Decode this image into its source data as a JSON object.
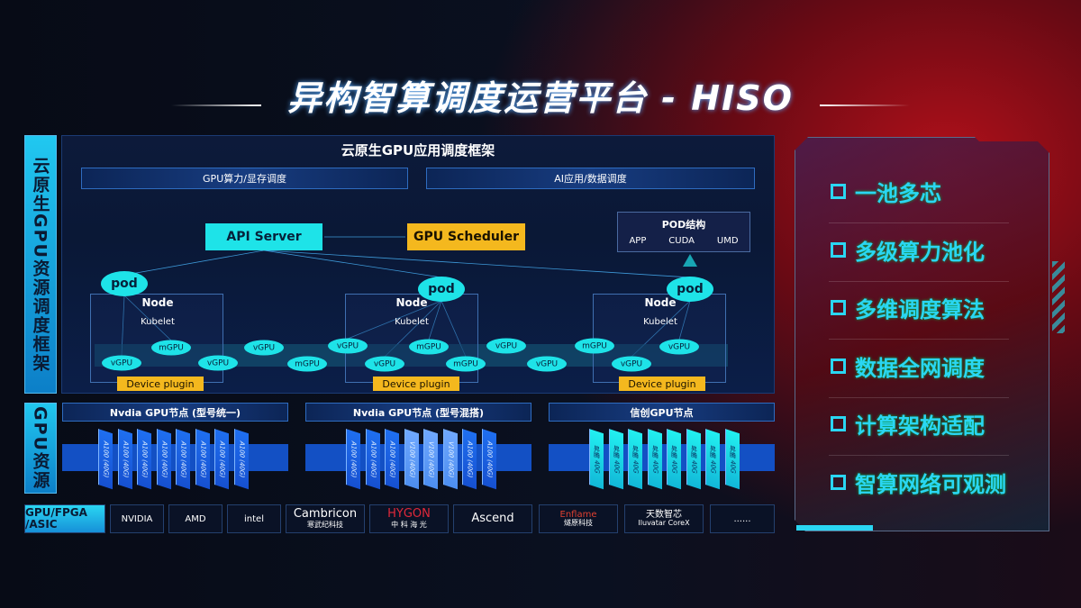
{
  "title": "异构智算调度运营平台 - HISO",
  "side_labels": {
    "framework": "云原生GPU资源调度框架",
    "resources": "GPU资源",
    "vendors": "GPU/FPGA /ASIC"
  },
  "framework": {
    "header": "云原生GPU应用调度框架",
    "bar_left": "GPU算力/显存调度",
    "bar_right": "AI应用/数据调度",
    "api_server": "API Server",
    "gpu_scheduler": "GPU Scheduler",
    "pod_struct": {
      "title": "POD结构",
      "items": [
        "APP",
        "CUDA",
        "UMD"
      ]
    },
    "pod_label": "pod",
    "node_label": "Node",
    "kubelet_label": "Kubelet",
    "device_plugin": "Device plugin",
    "virtual_gpus": [
      "vGPU",
      "mGPU",
      "vGPU",
      "vGPU",
      "mGPU",
      "vGPU",
      "vGPU",
      "mGPU",
      "mGPU",
      "vGPU",
      "vGPU",
      "mGPU",
      "vGPU",
      "vGPU"
    ]
  },
  "gpu_nodes": [
    {
      "title": "Nvdia GPU节点 (型号统一)",
      "cards": [
        "A100 (40G)",
        "A100 (40G)",
        "A100 (40G)",
        "A100 (40G)",
        "A100 (40G)",
        "A100 (40G)",
        "A100 (40G)",
        "A100 (40G)"
      ]
    },
    {
      "title": "Nvdia GPU节点 (型号混搭)",
      "cards": [
        "A100 (40G)",
        "A100 (40G)",
        "A100 (40G)",
        "V100 (40G)",
        "V100 (40G)",
        "V100 (40G)",
        "A100 (40G)",
        "A100 (40G)"
      ]
    },
    {
      "title": "信创GPU节点",
      "cards": [
        "昇腾 40G",
        "昇腾 40G",
        "昇腾 40G",
        "昇腾 40G",
        "昇腾 40G",
        "昇腾 40G",
        "昇腾 40G",
        "昇腾 40G"
      ]
    }
  ],
  "vendors": [
    {
      "name": "NVIDIA"
    },
    {
      "name": "AMD"
    },
    {
      "name": "intel"
    },
    {
      "name": "Cambricon",
      "sub": "寒武纪科技"
    },
    {
      "name": "HYGON",
      "sub": "中 科 海 光"
    },
    {
      "name": "Ascend"
    },
    {
      "name": "Enflame",
      "sub": "燧原科技"
    },
    {
      "name": "天数智芯",
      "sub": "Iluvatar CoreX"
    },
    {
      "name": "......"
    }
  ],
  "features": [
    "一池多芯",
    "多级算力池化",
    "多维调度算法",
    "数据全网调度",
    "计算架构适配",
    "智算网络可观测"
  ],
  "colors": {
    "cyan": "#1ee3e8",
    "yellow": "#f4b81e",
    "blue": "#1650d0",
    "red": "#b0101a"
  }
}
